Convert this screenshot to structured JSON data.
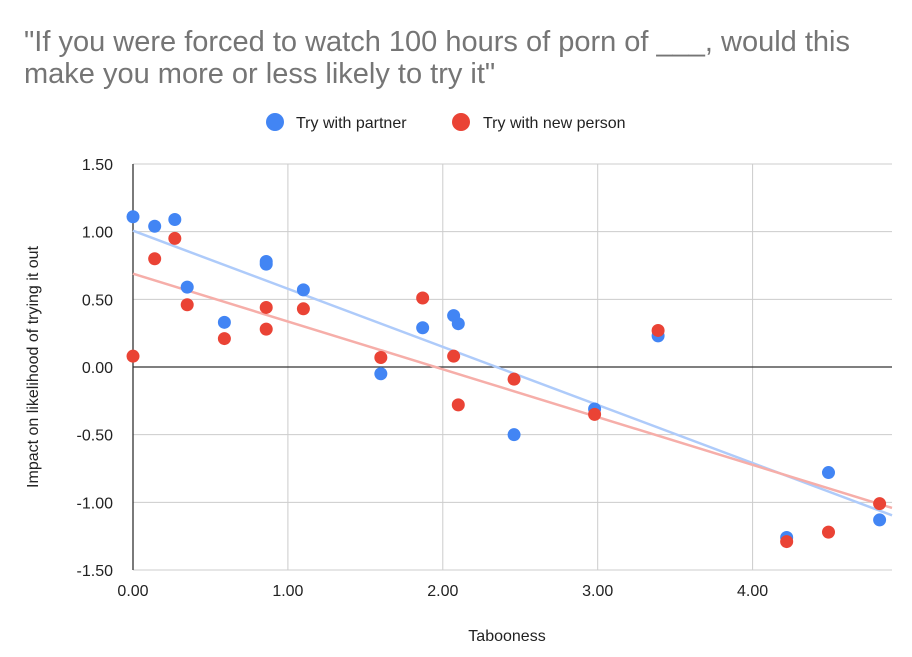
{
  "title": "\"If you were forced to watch 100 hours of porn of ___, would this make you more or less likely to try it\"",
  "colors": {
    "partner": "#4285f4",
    "new_person": "#ea4335",
    "partner_trend": "#aecbfa",
    "new_person_trend": "#f6aea9",
    "grid": "#cccccc",
    "axis_text": "#222222"
  },
  "chart_data": {
    "type": "scatter",
    "title": "\"If you were forced to watch 100 hours of porn of ___, would this make you more or less likely to try it\"",
    "xlabel": "Tabooness",
    "ylabel": "Impact on likelihood of trying it out",
    "xlim": [
      0,
      4.9
    ],
    "ylim": [
      -1.5,
      1.5
    ],
    "x_ticks": [
      0,
      1,
      2,
      3,
      4
    ],
    "x_tick_labels": [
      "0.00",
      "1.00",
      "2.00",
      "3.00",
      "4.00"
    ],
    "y_ticks": [
      1.5,
      1,
      0.5,
      0,
      -0.5,
      -1,
      -1.5
    ],
    "y_tick_labels": [
      "1.50",
      "1.00",
      "0.50",
      "0.00",
      "-0.50",
      "-1.00",
      "-1.50"
    ],
    "grid": true,
    "legend_position": "top",
    "series": [
      {
        "name": "Try with partner",
        "color": "#4285f4",
        "trendline": true,
        "points": [
          [
            0.0,
            1.11
          ],
          [
            0.14,
            1.04
          ],
          [
            0.27,
            1.09
          ],
          [
            0.35,
            0.59
          ],
          [
            0.59,
            0.33
          ],
          [
            0.86,
            0.78
          ],
          [
            0.86,
            0.76
          ],
          [
            1.1,
            0.57
          ],
          [
            1.6,
            -0.05
          ],
          [
            1.87,
            0.29
          ],
          [
            2.07,
            0.38
          ],
          [
            2.1,
            0.32
          ],
          [
            2.46,
            -0.5
          ],
          [
            2.98,
            -0.31
          ],
          [
            3.39,
            0.23
          ],
          [
            4.22,
            -1.26
          ],
          [
            4.49,
            -0.78
          ],
          [
            4.82,
            -1.13
          ]
        ]
      },
      {
        "name": "Try with new person",
        "color": "#ea4335",
        "trendline": true,
        "points": [
          [
            0.0,
            0.08
          ],
          [
            0.14,
            0.8
          ],
          [
            0.27,
            0.95
          ],
          [
            0.35,
            0.46
          ],
          [
            0.59,
            0.21
          ],
          [
            0.86,
            0.44
          ],
          [
            0.86,
            0.28
          ],
          [
            1.1,
            0.43
          ],
          [
            1.6,
            0.07
          ],
          [
            1.87,
            0.51
          ],
          [
            2.07,
            0.08
          ],
          [
            2.1,
            -0.28
          ],
          [
            2.46,
            -0.09
          ],
          [
            2.98,
            -0.35
          ],
          [
            3.39,
            0.27
          ],
          [
            4.22,
            -1.29
          ],
          [
            4.49,
            -1.22
          ],
          [
            4.82,
            -1.01
          ]
        ]
      }
    ]
  }
}
